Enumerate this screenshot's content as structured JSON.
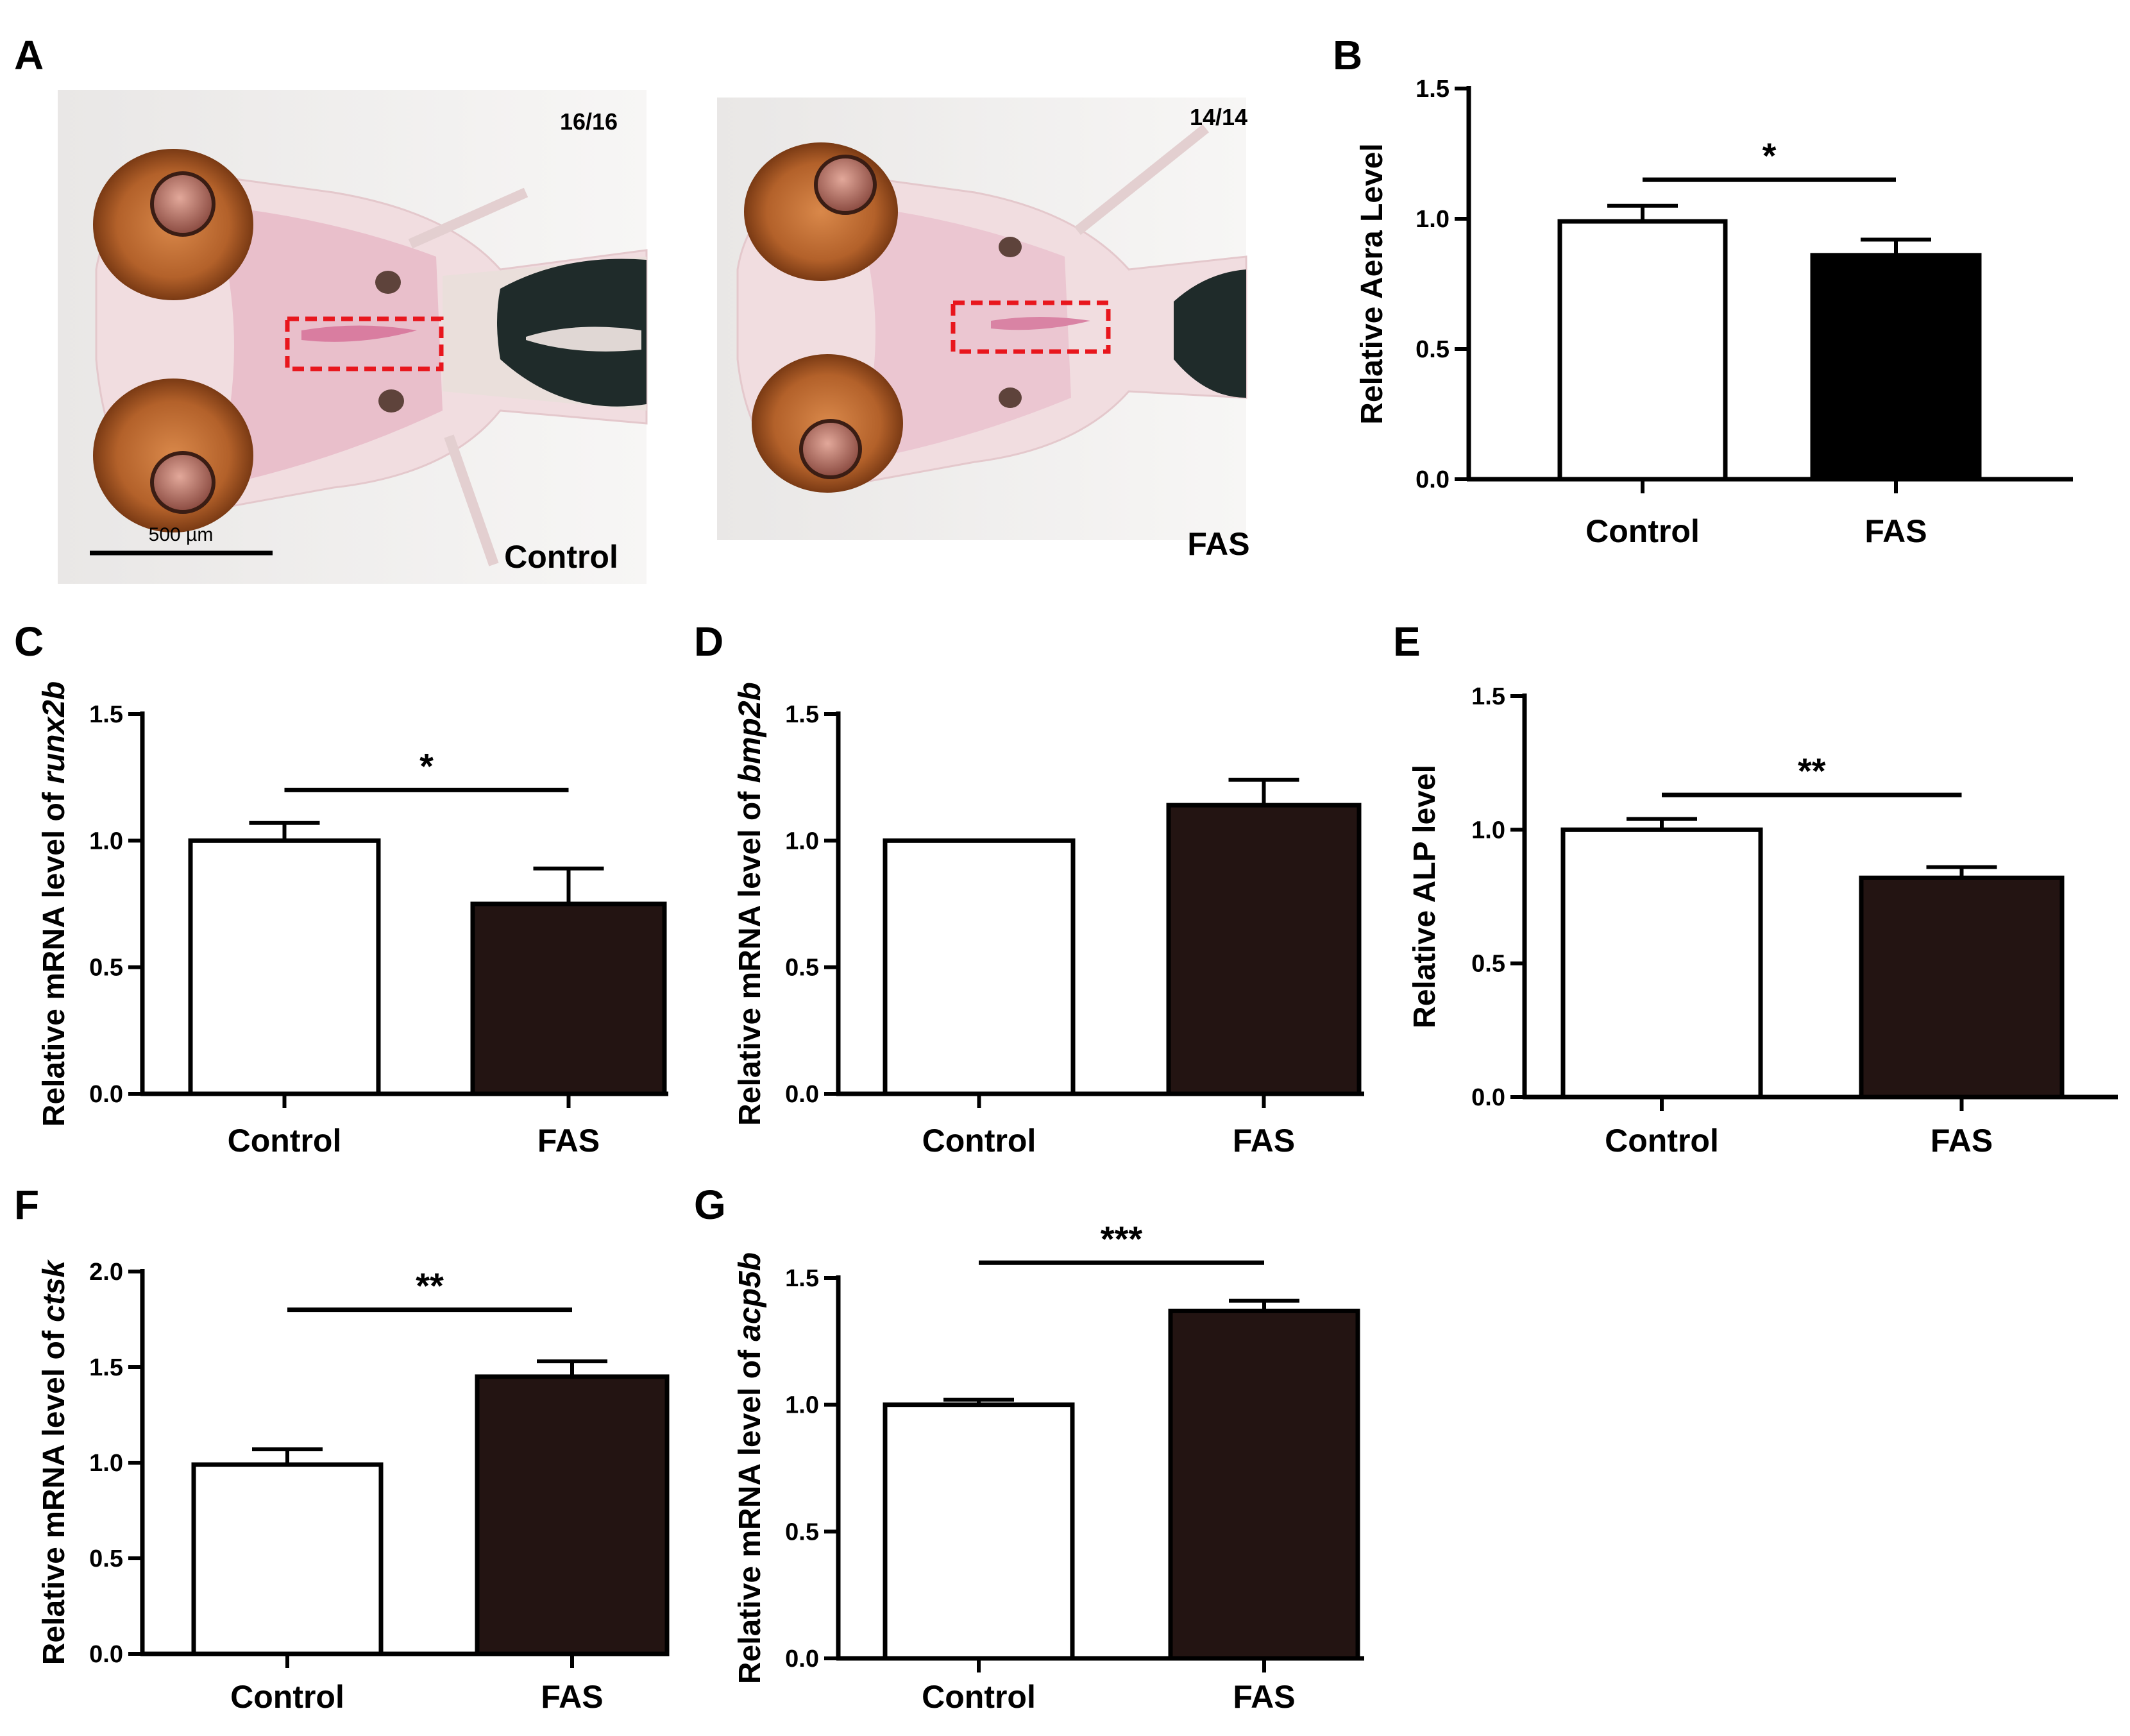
{
  "panels": {
    "A": {
      "letter": "A",
      "control_ratio": "16/16",
      "fas_ratio": "14/14",
      "scale_bar": "500 µm",
      "control_label": "Control",
      "fas_label": "FAS"
    }
  },
  "colors": {
    "control_fill": "#ffffff",
    "fas_fill_B": "#000000",
    "fas_fill": "#231412",
    "stroke": "#000000",
    "roi_box": "#e8161d"
  },
  "chart_data": [
    {
      "id": "B",
      "letter": "B",
      "type": "bar",
      "categories": [
        "Control",
        "FAS"
      ],
      "values": [
        0.99,
        0.86
      ],
      "errors": [
        0.06,
        0.06
      ],
      "ylabel": "Relative Aera Level",
      "ylabel_gene": "",
      "yticks": [
        "0.0",
        "0.5",
        "1.0",
        "1.5"
      ],
      "ylim": [
        0,
        1.5
      ],
      "significance": "*",
      "sig_y": 1.15
    },
    {
      "id": "C",
      "letter": "C",
      "type": "bar",
      "categories": [
        "Control",
        "FAS"
      ],
      "values": [
        1.0,
        0.75
      ],
      "errors": [
        0.07,
        0.14
      ],
      "ylabel": "Relative mRNA level of ",
      "ylabel_gene": "runx2b",
      "yticks": [
        "0.0",
        "0.5",
        "1.0",
        "1.5"
      ],
      "ylim": [
        0,
        1.5
      ],
      "significance": "*",
      "sig_y": 1.2
    },
    {
      "id": "D",
      "letter": "D",
      "type": "bar",
      "categories": [
        "Control",
        "FAS"
      ],
      "values": [
        1.0,
        1.14
      ],
      "errors": [
        0,
        0.1
      ],
      "ylabel": "Relative mRNA level of ",
      "ylabel_gene": "bmp2b",
      "yticks": [
        "0.0",
        "0.5",
        "1.0",
        "1.5"
      ],
      "ylim": [
        0,
        1.5
      ],
      "significance": "",
      "sig_y": null
    },
    {
      "id": "E",
      "letter": "E",
      "type": "bar",
      "categories": [
        "Control",
        "FAS"
      ],
      "values": [
        1.0,
        0.82
      ],
      "errors": [
        0.04,
        0.04
      ],
      "ylabel": "Relative ALP level",
      "ylabel_gene": "",
      "yticks": [
        "0.0",
        "0.5",
        "1.0",
        "1.5"
      ],
      "ylim": [
        0,
        1.5
      ],
      "significance": "**",
      "sig_y": 1.13
    },
    {
      "id": "F",
      "letter": "F",
      "type": "bar",
      "categories": [
        "Control",
        "FAS"
      ],
      "values": [
        0.99,
        1.45
      ],
      "errors": [
        0.08,
        0.08
      ],
      "ylabel": "Relative mRNA level of ",
      "ylabel_gene": "ctsk",
      "yticks": [
        "0.0",
        "0.5",
        "1.0",
        "1.5",
        "2.0"
      ],
      "ylim": [
        0,
        2.0
      ],
      "significance": "**",
      "sig_y": 1.8
    },
    {
      "id": "G",
      "letter": "G",
      "type": "bar",
      "categories": [
        "Control",
        "FAS"
      ],
      "values": [
        1.0,
        1.37
      ],
      "errors": [
        0.02,
        0.04
      ],
      "ylabel": "Relative mRNA level of ",
      "ylabel_gene": "acp5b",
      "yticks": [
        "0.0",
        "0.5",
        "1.0",
        "1.5"
      ],
      "ylim": [
        0,
        1.5
      ],
      "significance": "***",
      "sig_y": 1.56
    }
  ]
}
